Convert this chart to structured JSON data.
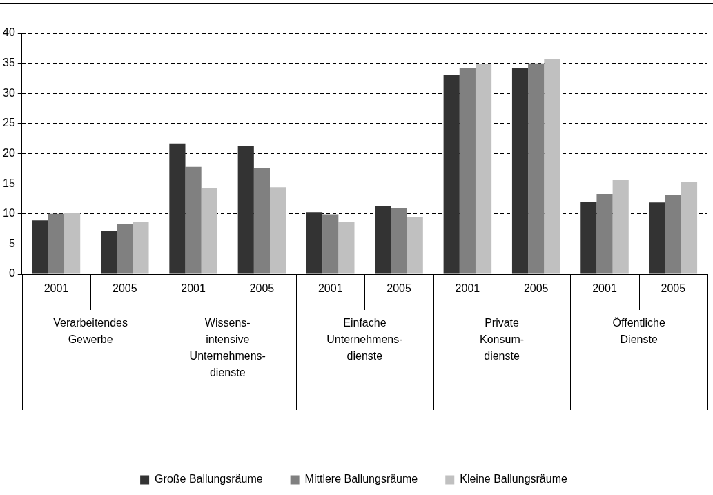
{
  "chart_data": {
    "type": "bar",
    "categories": [
      "2001",
      "2005",
      "2001",
      "2005",
      "2001",
      "2005",
      "2001",
      "2005",
      "2001",
      "2005"
    ],
    "series": [
      {
        "name": "Große Ballungsräume",
        "color": "#333333",
        "values": [
          8.9,
          7.1,
          21.7,
          21.2,
          10.3,
          11.3,
          33.1,
          34.2,
          12.0,
          11.9
        ]
      },
      {
        "name": "Mittlere Ballungsräume",
        "color": "#808080",
        "values": [
          10.0,
          8.3,
          17.8,
          17.6,
          9.9,
          10.9,
          34.2,
          35.0,
          13.3,
          13.1
        ]
      },
      {
        "name": "Kleine Ballungsräume",
        "color": "#c0c0c0",
        "values": [
          10.2,
          8.6,
          14.2,
          14.4,
          8.6,
          9.5,
          34.9,
          35.7,
          15.6,
          15.3
        ]
      }
    ],
    "annotations": [
      "Verarbeitendes\nGewerbe",
      "Wissens-\nintensive\nUnternehmens-\ndienste",
      "Einfache\nUnternehmens-\ndienste",
      "Private\nKonsum-\ndienste",
      "Öffentliche\nDienste"
    ],
    "ylim": [
      0,
      40
    ],
    "yticks": [
      0,
      5,
      10,
      15,
      20,
      25,
      30,
      35,
      40
    ],
    "grid": "y",
    "legend": "bottom"
  }
}
